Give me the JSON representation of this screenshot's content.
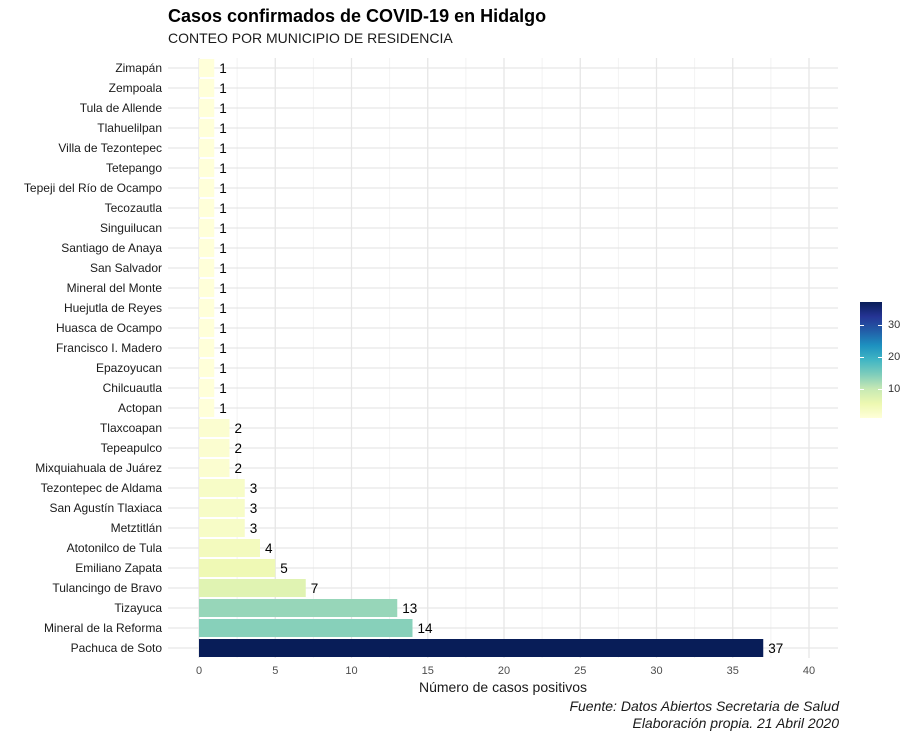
{
  "chart_data": {
    "type": "bar",
    "orientation": "horizontal",
    "title": "Casos confirmados de COVID-19 en Hidalgo",
    "subtitle": "CONTEO POR MUNICIPIO DE RESIDENCIA",
    "xlabel": "Número de casos positivos",
    "ylabel": "",
    "xlim": [
      0,
      40
    ],
    "x_ticks": [
      0,
      5,
      10,
      15,
      20,
      25,
      30,
      35,
      40
    ],
    "grid": true,
    "data_labels": true,
    "categories": [
      "Zimapán",
      "Zempoala",
      "Tula de Allende",
      "Tlahuelilpan",
      "Villa de Tezontepec",
      "Tetepango",
      "Tepeji del Río de Ocampo",
      "Tecozautla",
      "Singuilucan",
      "Santiago de Anaya",
      "San Salvador",
      "Mineral del Monte",
      "Huejutla de Reyes",
      "Huasca de Ocampo",
      "Francisco I. Madero",
      "Epazoyucan",
      "Chilcuautla",
      "Actopan",
      "Tlaxcoapan",
      "Tepeapulco",
      "Mixquiahuala de Juárez",
      "Tezontepec de Aldama",
      "San Agustín Tlaxiaca",
      "Metztitlán",
      "Atotonilco de Tula",
      "Emiliano Zapata",
      "Tulancingo de Bravo",
      "Tizayuca",
      "Mineral de la Reforma",
      "Pachuca de Soto"
    ],
    "values": [
      1,
      1,
      1,
      1,
      1,
      1,
      1,
      1,
      1,
      1,
      1,
      1,
      1,
      1,
      1,
      1,
      1,
      1,
      2,
      2,
      2,
      3,
      3,
      3,
      4,
      5,
      7,
      13,
      14,
      37
    ],
    "color_scale": {
      "name": "YlGnBu",
      "stops": [
        "#ffffd9",
        "#edf8b1",
        "#c7e9b4",
        "#7fcdbb",
        "#41b6c4",
        "#1d91c0",
        "#225ea8",
        "#253494",
        "#081d58"
      ],
      "range": [
        1,
        37
      ],
      "legend_ticks": [
        10,
        20,
        30
      ],
      "legend_position": "right"
    },
    "caption": [
      "Fuente: Datos Abiertos Secretaria de Salud",
      "Elaboración propia. 21 Abril 2020"
    ]
  }
}
